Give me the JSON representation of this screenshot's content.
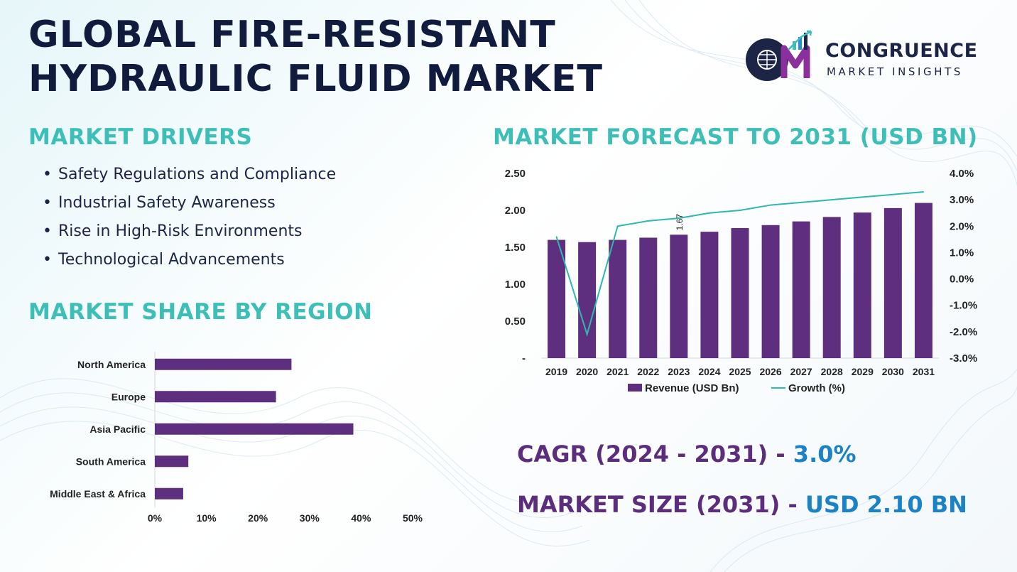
{
  "title": {
    "line1": "GLOBAL FIRE-RESISTANT",
    "line2": "HYDRAULIC FLUID MARKET"
  },
  "brand": {
    "name": "CONGRUENCE",
    "tagline": "MARKET INSIGHTS",
    "mark_letters": "CM"
  },
  "colors": {
    "heading_teal": "#3dbfb8",
    "title_navy": "#101b3d",
    "bar_purple": "#5f2f7f",
    "line_teal": "#2fb7b1",
    "value_blue": "#1b82c6"
  },
  "drivers": {
    "heading": "MARKET DRIVERS",
    "items": [
      "Safety Regulations and Compliance",
      "Industrial Safety Awareness",
      "Rise in High-Risk Environments",
      "Technological Advancements"
    ]
  },
  "region": {
    "heading": "MARKET SHARE BY REGION"
  },
  "forecast": {
    "heading": "MARKET FORECAST TO 2031 (USD BN)"
  },
  "stats": {
    "cagr_label": "CAGR (2024 - 2031)",
    "cagr_sep": " - ",
    "cagr_value": "3.0%",
    "size_label": "MARKET SIZE (2031)",
    "size_sep": " - ",
    "size_value": "USD 2.10 BN"
  },
  "chart_data": [
    {
      "type": "bar",
      "orientation": "horizontal",
      "categories": [
        "North America",
        "Europe",
        "Asia Pacific",
        "South America",
        "Middle East & Africa"
      ],
      "values": [
        26.5,
        23.5,
        38.5,
        6.5,
        5.5
      ],
      "xlim": [
        0,
        50
      ],
      "x_ticks": [
        "0%",
        "10%",
        "20%",
        "30%",
        "40%",
        "50%"
      ],
      "grid": false,
      "legend": "none"
    },
    {
      "type": "bar",
      "categories": [
        "2019",
        "2020",
        "2021",
        "2022",
        "2023",
        "2024",
        "2025",
        "2026",
        "2027",
        "2028",
        "2029",
        "2030",
        "2031"
      ],
      "series": [
        {
          "name": "Revenue (USD Bn)",
          "type": "bar",
          "axis": "left",
          "values": [
            1.6,
            1.57,
            1.6,
            1.63,
            1.67,
            1.71,
            1.76,
            1.8,
            1.85,
            1.91,
            1.97,
            2.03,
            2.1
          ]
        },
        {
          "name": "Growth (%)",
          "type": "line",
          "axis": "right",
          "values": [
            1.6,
            -2.1,
            2.0,
            2.2,
            2.3,
            2.5,
            2.6,
            2.8,
            2.9,
            3.0,
            3.1,
            3.2,
            3.3
          ]
        }
      ],
      "data_labels": [
        {
          "category": "2023",
          "text": "1.67"
        }
      ],
      "ylim": [
        0,
        2.5
      ],
      "y_ticks": [
        "-",
        "0.50",
        "1.00",
        "1.50",
        "2.00",
        "2.50"
      ],
      "y2lim": [
        -3.0,
        4.0
      ],
      "y2_ticks": [
        "-3.0%",
        "-2.0%",
        "-1.0%",
        "0.0%",
        "1.0%",
        "2.0%",
        "3.0%",
        "4.0%"
      ],
      "grid": false,
      "legend": "bottom"
    }
  ]
}
